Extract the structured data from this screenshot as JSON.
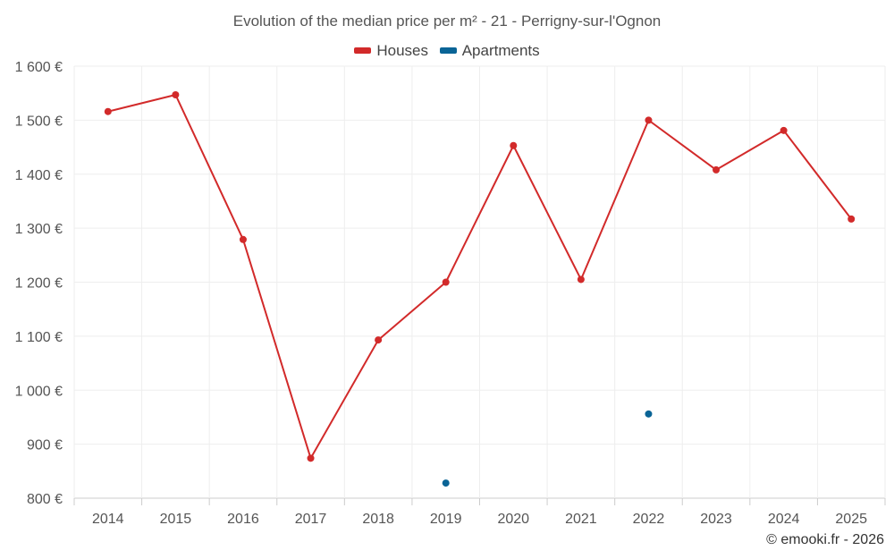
{
  "title": "Evolution of the median price per m² - 21 - Perrigny-sur-l'Ognon",
  "credit": "© emooki.fr - 2026",
  "colors": {
    "houses": "#d22a2a",
    "apartments": "#0a6496",
    "grid": "#eeeeee",
    "axis": "#cccccc"
  },
  "chart_data": {
    "type": "line",
    "title": "Evolution of the median price per m² - 21 - Perrigny-sur-l'Ognon",
    "xlabel": "",
    "ylabel": "",
    "categories": [
      "2014",
      "2015",
      "2016",
      "2017",
      "2018",
      "2019",
      "2020",
      "2021",
      "2022",
      "2023",
      "2024",
      "2025"
    ],
    "ylim": [
      800,
      1600
    ],
    "yticks": [
      800,
      900,
      1000,
      1100,
      1200,
      1300,
      1400,
      1500,
      1600
    ],
    "ytick_labels": [
      "800 €",
      "900 €",
      "1 000 €",
      "1 100 €",
      "1 200 €",
      "1 300 €",
      "1 400 €",
      "1 500 €",
      "1 600 €"
    ],
    "legend_position": "top-center",
    "grid": true,
    "series": [
      {
        "name": "Houses",
        "color": "#d22a2a",
        "line": true,
        "values": [
          1516,
          1547,
          1279,
          874,
          1093,
          1200,
          1453,
          1205,
          1500,
          1408,
          1481,
          1317
        ]
      },
      {
        "name": "Apartments",
        "color": "#0a6496",
        "line": false,
        "values": [
          null,
          null,
          null,
          null,
          null,
          828,
          null,
          null,
          956,
          null,
          null,
          null
        ]
      }
    ]
  }
}
